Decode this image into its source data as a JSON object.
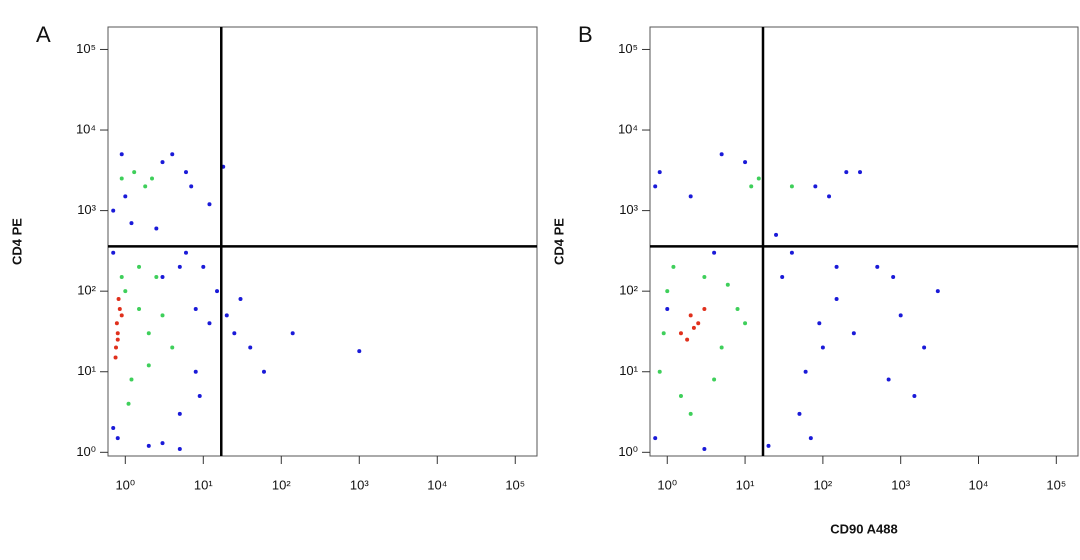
{
  "chart_data": [
    {
      "type": "scatter",
      "label": "A",
      "ylabel": "CD4 PE",
      "log": true,
      "xlim": [
        0.6,
        190000
      ],
      "ylim": [
        0.9,
        190000
      ],
      "xticks": [
        {
          "value": 1,
          "label": "10⁰"
        },
        {
          "value": 10,
          "label": "10¹"
        },
        {
          "value": 100,
          "label": "10²"
        },
        {
          "value": 1000,
          "label": "10³"
        },
        {
          "value": 10000,
          "label": "10⁴"
        },
        {
          "value": 100000,
          "label": "10⁵"
        }
      ],
      "yticks": [
        {
          "value": 1,
          "label": "10⁰"
        },
        {
          "value": 10,
          "label": "10¹"
        },
        {
          "value": 100,
          "label": "10²"
        },
        {
          "value": 1000,
          "label": "10³"
        },
        {
          "value": 10000,
          "label": "10⁴"
        },
        {
          "value": 100000,
          "label": "10⁵"
        }
      ],
      "xgate": 17,
      "ygate": 360,
      "series": [
        {
          "color": "#1a1ad8",
          "x": [
            0.7,
            5,
            8,
            12,
            3,
            6,
            15,
            10,
            20,
            30,
            40,
            0.8,
            2,
            5,
            9,
            0.7,
            1,
            3,
            6,
            4,
            7,
            12,
            18,
            25,
            60,
            140,
            1.2,
            2.5,
            0.9,
            3,
            5,
            8,
            0.7,
            1000
          ],
          "values": [
            2,
            3,
            10,
            40,
            150,
            300,
            100,
            200,
            50,
            80,
            20,
            1.5,
            1.2,
            1.1,
            5,
            1000,
            1500,
            4000,
            3000,
            5000,
            2000,
            1200,
            3500,
            30,
            10,
            30,
            700,
            600,
            5000,
            1.3,
            200,
            60,
            300,
            18
          ]
        },
        {
          "color": "#3ecf5a",
          "x": [
            1,
            1.5,
            2,
            1.2,
            3,
            2.5,
            1.1,
            0.9,
            1.8,
            4,
            1.3,
            2.2,
            0.9,
            1.5,
            2
          ],
          "values": [
            100,
            60,
            30,
            8,
            50,
            150,
            4,
            150,
            2000,
            20,
            3000,
            2500,
            2500,
            200,
            12
          ]
        },
        {
          "color": "#e0301c",
          "x": [
            0.75,
            0.8,
            0.78,
            0.85,
            0.8,
            0.9,
            0.76,
            0.82
          ],
          "values": [
            15,
            25,
            40,
            60,
            30,
            50,
            20,
            80
          ]
        }
      ]
    },
    {
      "type": "scatter",
      "label": "B",
      "ylabel": "CD4 PE",
      "xlabel": "CD90 A488",
      "log": true,
      "xlim": [
        0.6,
        190000
      ],
      "ylim": [
        0.9,
        190000
      ],
      "xticks": [
        {
          "value": 1,
          "label": "10⁰"
        },
        {
          "value": 10,
          "label": "10¹"
        },
        {
          "value": 100,
          "label": "10²"
        },
        {
          "value": 1000,
          "label": "10³"
        },
        {
          "value": 10000,
          "label": "10⁴"
        },
        {
          "value": 100000,
          "label": "10⁵"
        }
      ],
      "yticks": [
        {
          "value": 1,
          "label": "10⁰"
        },
        {
          "value": 10,
          "label": "10¹"
        },
        {
          "value": 100,
          "label": "10²"
        },
        {
          "value": 1000,
          "label": "10³"
        },
        {
          "value": 10000,
          "label": "10⁴"
        },
        {
          "value": 100000,
          "label": "10⁵"
        }
      ],
      "xgate": 17,
      "ygate": 360,
      "series": [
        {
          "color": "#1a1ad8",
          "x": [
            0.7,
            20,
            50,
            100,
            150,
            30,
            60,
            200,
            10,
            5,
            0.8,
            2,
            80,
            120,
            300,
            500,
            1000,
            2000,
            3000,
            0.7,
            3,
            40,
            90,
            25,
            70,
            700,
            1500,
            4,
            1,
            150,
            250,
            800
          ],
          "values": [
            1.5,
            1.2,
            3,
            20,
            80,
            150,
            10,
            3000,
            4000,
            5000,
            3000,
            1500,
            2000,
            1500,
            3000,
            200,
            50,
            20,
            100,
            2000,
            1.1,
            300,
            40,
            500,
            1.5,
            8,
            5,
            300,
            60,
            200,
            30,
            150
          ]
        },
        {
          "color": "#3ecf5a",
          "x": [
            0.8,
            1,
            1.5,
            3,
            5,
            8,
            1.2,
            4,
            2,
            6,
            10,
            0.9,
            15,
            12,
            40
          ],
          "values": [
            10,
            100,
            5,
            150,
            20,
            60,
            200,
            8,
            3,
            120,
            40,
            30,
            2500,
            2000,
            2000
          ]
        },
        {
          "color": "#e0301c",
          "x": [
            1.5,
            2,
            2.5,
            1.8,
            3,
            2.2
          ],
          "values": [
            30,
            50,
            40,
            25,
            60,
            35
          ]
        }
      ]
    }
  ]
}
